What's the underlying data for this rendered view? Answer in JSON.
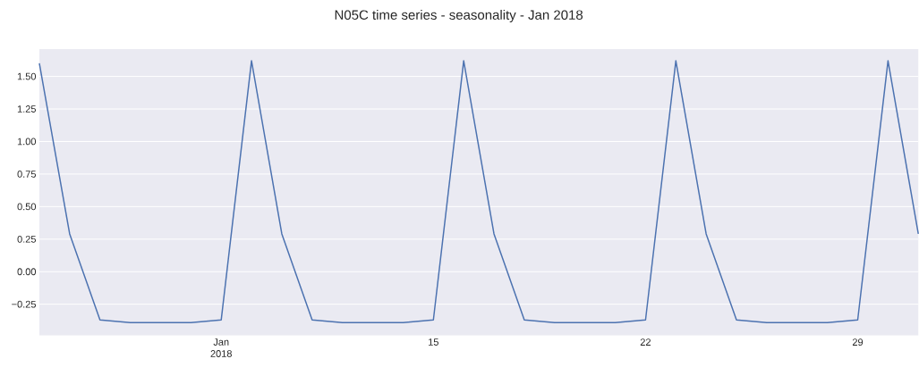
{
  "chart_data": {
    "type": "line",
    "title": "N05C time series - seasonality - Jan 2018",
    "x": [
      "2018-01-02",
      "2018-01-03",
      "2018-01-04",
      "2018-01-05",
      "2018-01-06",
      "2018-01-07",
      "2018-01-08",
      "2018-01-09",
      "2018-01-10",
      "2018-01-11",
      "2018-01-12",
      "2018-01-13",
      "2018-01-14",
      "2018-01-15",
      "2018-01-16",
      "2018-01-17",
      "2018-01-18",
      "2018-01-19",
      "2018-01-20",
      "2018-01-21",
      "2018-01-22",
      "2018-01-23",
      "2018-01-24",
      "2018-01-25",
      "2018-01-26",
      "2018-01-27",
      "2018-01-28",
      "2018-01-29",
      "2018-01-30",
      "2018-01-31"
    ],
    "series": [
      {
        "color": "#4c72b0",
        "values": [
          1.6,
          0.29,
          -0.37,
          -0.39,
          -0.39,
          -0.39,
          -0.37,
          1.62,
          0.29,
          -0.37,
          -0.39,
          -0.39,
          -0.39,
          -0.37,
          1.62,
          0.29,
          -0.37,
          -0.39,
          -0.39,
          -0.39,
          -0.37,
          1.62,
          0.29,
          -0.37,
          -0.39,
          -0.39,
          -0.39,
          -0.37,
          1.62,
          0.29
        ]
      }
    ],
    "xlim": [
      "2018-01-02",
      "2018-01-31"
    ],
    "xticks": [
      {
        "value": "2018-01-08",
        "label": "Jan 2018"
      },
      {
        "value": "2018-01-15",
        "label": "15"
      },
      {
        "value": "2018-01-22",
        "label": "22"
      },
      {
        "value": "2018-01-29",
        "label": "29"
      }
    ],
    "ylim": [
      -0.49,
      1.71
    ],
    "yticks": [
      {
        "value": -0.25,
        "label": "−0.25"
      },
      {
        "value": 0,
        "label": "0.00"
      },
      {
        "value": 0.25,
        "label": "0.25"
      },
      {
        "value": 0.5,
        "label": "0.50"
      },
      {
        "value": 0.75,
        "label": "0.75"
      },
      {
        "value": 1.0,
        "label": "1.00"
      },
      {
        "value": 1.25,
        "label": "1.25"
      },
      {
        "value": 1.5,
        "label": "1.50"
      }
    ],
    "grid": "y",
    "legend": false,
    "marker": "none",
    "line_style": "solid"
  }
}
